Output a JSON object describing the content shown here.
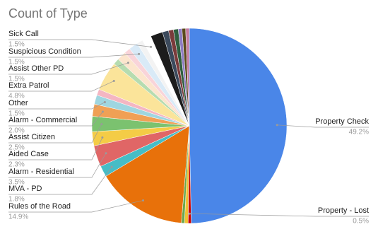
{
  "chart_data": {
    "type": "pie",
    "title": "Count of Type",
    "categories": [
      "Property Check",
      "Property - Lost",
      null,
      null,
      "Rules of the Road",
      "MVA - PD",
      "Alarm - Residential",
      "Aided Case",
      "Assist Citizen",
      "Alarm - Commercial",
      "Other",
      null,
      "Extra Patrol",
      null,
      "Assist Other PD",
      null,
      "Suspicious Condition",
      null,
      "Sick Call",
      null,
      null,
      null,
      null,
      null,
      null,
      null
    ],
    "values": [
      49.2,
      0.5,
      0.6,
      0.5,
      14.9,
      1.8,
      3.5,
      2.3,
      2.5,
      2.0,
      1.5,
      1.0,
      4.8,
      1.0,
      1.5,
      1.0,
      1.5,
      1.0,
      1.5,
      2.0,
      1.0,
      0.8,
      0.8,
      0.6,
      0.6,
      0.6
    ],
    "value_labels": [
      "49.2%",
      "0.5%",
      null,
      null,
      "14.9%",
      "1.8%",
      "3.5%",
      "2.3%",
      "2.5%",
      "2.0%",
      "1.5%",
      null,
      "4.8%",
      null,
      "1.5%",
      null,
      "1.5%",
      null,
      "1.5%",
      null,
      null,
      null,
      null,
      null,
      null,
      null
    ],
    "colors": [
      "#4a86e8",
      "#cc0000",
      "#f1c232",
      "#6aa84f",
      "#e8710a",
      "#46bdc6",
      "#e06666",
      "#f4cc46",
      "#7bc26f",
      "#f0a055",
      "#9fd6e0",
      "#f4b6c2",
      "#fbe49a",
      "#b6dcb0",
      "#fce5cd",
      "#f9d4d9",
      "#d9eaf7",
      "#f3f3f3",
      "#ffffff",
      "#1c1c1c",
      "#3c4a5c",
      "#7a3b3b",
      "#2f5f3f",
      "#8e7cc3",
      "#5b4a1c",
      "#c27ba0"
    ]
  }
}
